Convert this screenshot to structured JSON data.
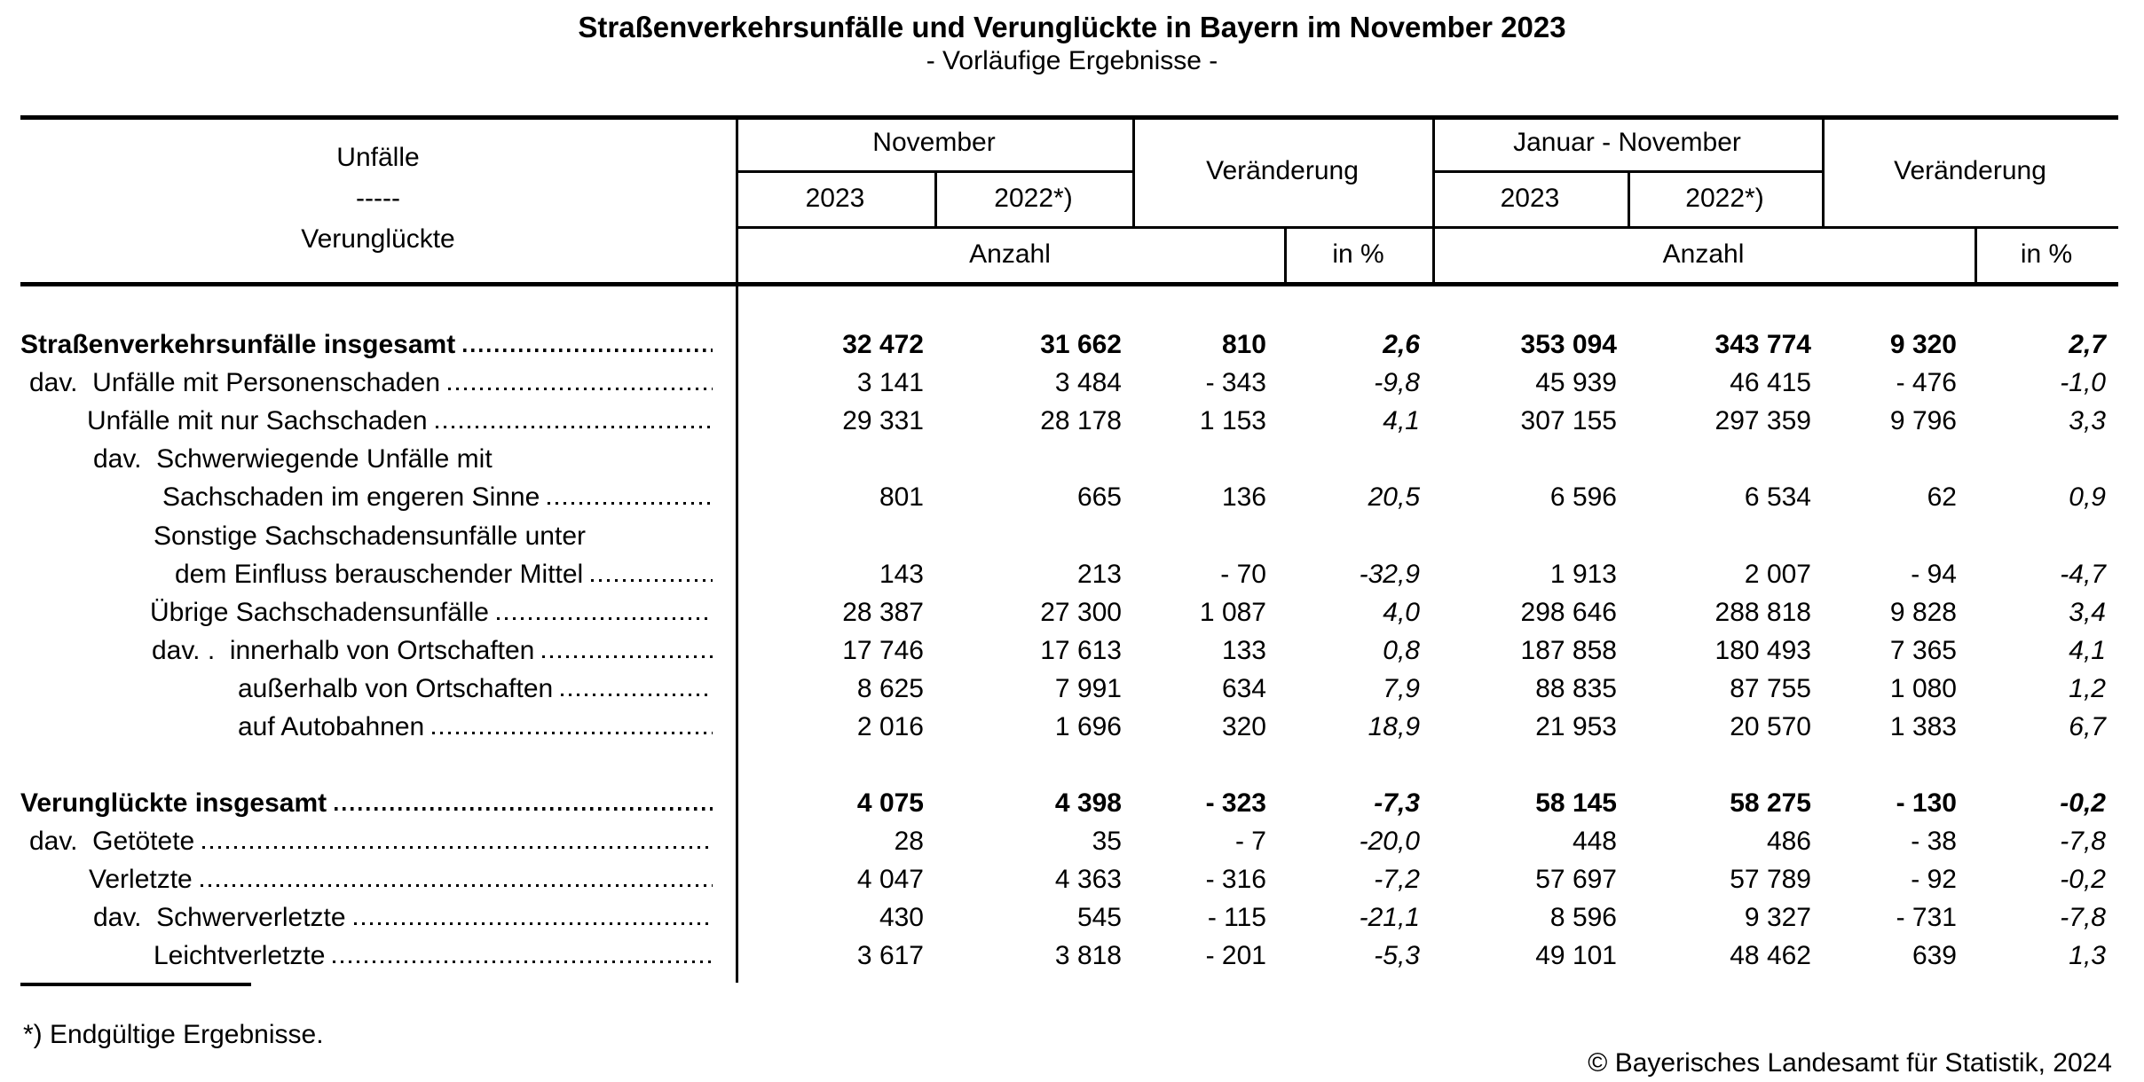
{
  "title": "Straßenverkehrsunfälle und Verunglückte in Bayern im November 2023",
  "subtitle": "- Vorläufige Ergebnisse -",
  "header": {
    "stub_line1": "Unfälle",
    "stub_line2": "-----",
    "stub_line3": "Verunglückte",
    "group_november": "November",
    "group_jan_november": "Januar - November",
    "change_label": "Veränderung",
    "year_current": "2023",
    "year_previous": "2022*)",
    "count_label": "Anzahl",
    "percent_label": "in %"
  },
  "sections": [
    {
      "rows": [
        {
          "label": "Straßenverkehrsunfälle insgesamt",
          "bold": true,
          "indent": 0,
          "dots": true,
          "values": [
            "32 472",
            "31 662",
            "810",
            "2,6",
            "353 094",
            "343 774",
            "9 320",
            "2,7"
          ]
        },
        {
          "label": "dav.  Unfälle mit Personenschaden",
          "bold": false,
          "indent": 10,
          "dots": true,
          "values": [
            "3 141",
            "3 484",
            "- 343",
            "-9,8",
            "45 939",
            "46 415",
            "- 476",
            "-1,0"
          ]
        },
        {
          "label": "Unfälle mit nur Sachschaden",
          "bold": false,
          "indent": 75,
          "dots": true,
          "values": [
            "29 331",
            "28 178",
            "1 153",
            "4,1",
            "307 155",
            "297 359",
            "9 796",
            "3,3"
          ]
        },
        {
          "label": "dav.  Schwerwiegende Unfälle mit",
          "bold": false,
          "indent": 82,
          "dots": false,
          "values": []
        },
        {
          "label": "Sachschaden im engeren Sinne",
          "bold": false,
          "indent": 160,
          "dots": true,
          "values": [
            "801",
            "665",
            "136",
            "20,5",
            "6 596",
            "6 534",
            "62",
            "0,9"
          ]
        },
        {
          "label": "Sonstige Sachschadensunfälle unter",
          "bold": false,
          "indent": 150,
          "dots": false,
          "values": []
        },
        {
          "label": "dem Einfluss berauschender Mittel",
          "bold": false,
          "indent": 174,
          "dots": true,
          "values": [
            "143",
            "213",
            "- 70",
            "-32,9",
            "1 913",
            "2 007",
            "- 94",
            "-4,7"
          ]
        },
        {
          "label": "Übrige Sachschadensunfälle",
          "bold": false,
          "indent": 146,
          "dots": true,
          "values": [
            "28 387",
            "27 300",
            "1 087",
            "4,0",
            "298 646",
            "288 818",
            "9 828",
            "3,4"
          ]
        },
        {
          "label": "dav. .  innerhalb von Ortschaften",
          "bold": false,
          "indent": 148,
          "dots": true,
          "values": [
            "17 746",
            "17 613",
            "133",
            "0,8",
            "187 858",
            "180 493",
            "7 365",
            "4,1"
          ]
        },
        {
          "label": "außerhalb von Ortschaften",
          "bold": false,
          "indent": 245,
          "dots": true,
          "values": [
            "8 625",
            "7 991",
            "634",
            "7,9",
            "88 835",
            "87 755",
            "1 080",
            "1,2"
          ]
        },
        {
          "label": "auf Autobahnen",
          "bold": false,
          "indent": 245,
          "dots": true,
          "values": [
            "2 016",
            "1 696",
            "320",
            "18,9",
            "21 953",
            "20 570",
            "1 383",
            "6,7"
          ]
        }
      ]
    },
    {
      "rows": [
        {
          "label": "Verunglückte insgesamt",
          "bold": true,
          "indent": 0,
          "dots": true,
          "values": [
            "4 075",
            "4 398",
            "- 323",
            "-7,3",
            "58 145",
            "58 275",
            "- 130",
            "-0,2"
          ]
        },
        {
          "label": "dav.  Getötete",
          "bold": false,
          "indent": 10,
          "dots": true,
          "values": [
            "28",
            "35",
            "- 7",
            "-20,0",
            "448",
            "486",
            "- 38",
            "-7,8"
          ]
        },
        {
          "label": "Verletzte",
          "bold": false,
          "indent": 77,
          "dots": true,
          "values": [
            "4 047",
            "4 363",
            "- 316",
            "-7,2",
            "57 697",
            "57 789",
            "- 92",
            "-0,2"
          ]
        },
        {
          "label": "dav.  Schwerverletzte",
          "bold": false,
          "indent": 82,
          "dots": true,
          "values": [
            "430",
            "545",
            "- 115",
            "-21,1",
            "8 596",
            "9 327",
            "- 731",
            "-7,8"
          ]
        },
        {
          "label": "Leichtverletzte",
          "bold": false,
          "indent": 150,
          "dots": true,
          "values": [
            "3 617",
            "3 818",
            "- 201",
            "-5,3",
            "49 101",
            "48 462",
            "639",
            "1,3"
          ]
        }
      ]
    }
  ],
  "footnote": "*) Endgültige Ergebnisse.",
  "copyright": "© Bayerisches Landesamt für Statistik, 2024"
}
